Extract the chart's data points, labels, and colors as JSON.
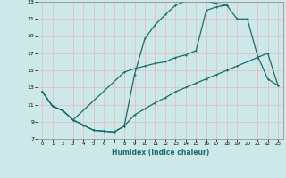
{
  "xlabel": "Humidex (Indice chaleur)",
  "ylabel": "",
  "xlim": [
    -0.5,
    23.5
  ],
  "ylim": [
    7,
    23
  ],
  "xticks": [
    0,
    1,
    2,
    3,
    4,
    5,
    6,
    7,
    8,
    9,
    10,
    11,
    12,
    13,
    14,
    15,
    16,
    17,
    18,
    19,
    20,
    21,
    22,
    23
  ],
  "yticks": [
    7,
    9,
    11,
    13,
    15,
    17,
    19,
    21,
    23
  ],
  "bg_color": "#cce8e8",
  "grid_color": "#e8b8b8",
  "line_color": "#1a6b6b",
  "line1_x": [
    0,
    1,
    2,
    3,
    4,
    5,
    6,
    7,
    8,
    9,
    10,
    11,
    12,
    13,
    14,
    15,
    16,
    17,
    18,
    19,
    20,
    21,
    22,
    23
  ],
  "line1_y": [
    12.5,
    10.8,
    10.3,
    9.2,
    8.6,
    8.0,
    7.9,
    7.8,
    8.5,
    9.8,
    10.5,
    11.2,
    11.8,
    12.5,
    13.0,
    13.5,
    14.0,
    14.5,
    15.0,
    15.5,
    16.0,
    16.5,
    17.0,
    13.2
  ],
  "line2_x": [
    0,
    1,
    2,
    3,
    4,
    5,
    6,
    7,
    8,
    9,
    10,
    11,
    12,
    13,
    14,
    15,
    16,
    17,
    18
  ],
  "line2_y": [
    12.5,
    10.8,
    10.3,
    9.2,
    8.6,
    8.0,
    7.9,
    7.8,
    8.5,
    14.5,
    18.7,
    20.3,
    21.5,
    22.6,
    23.1,
    23.2,
    23.1,
    22.8,
    22.6
  ],
  "line3_x": [
    0,
    1,
    2,
    3,
    8,
    9,
    10,
    11,
    12,
    13,
    14,
    15,
    16,
    17,
    18,
    19,
    20,
    21,
    22,
    23
  ],
  "line3_y": [
    12.5,
    10.8,
    10.3,
    9.2,
    14.8,
    15.2,
    15.5,
    15.8,
    16.0,
    16.5,
    16.8,
    17.3,
    22.0,
    22.4,
    22.6,
    21.0,
    21.0,
    16.7,
    14.0,
    13.2
  ]
}
